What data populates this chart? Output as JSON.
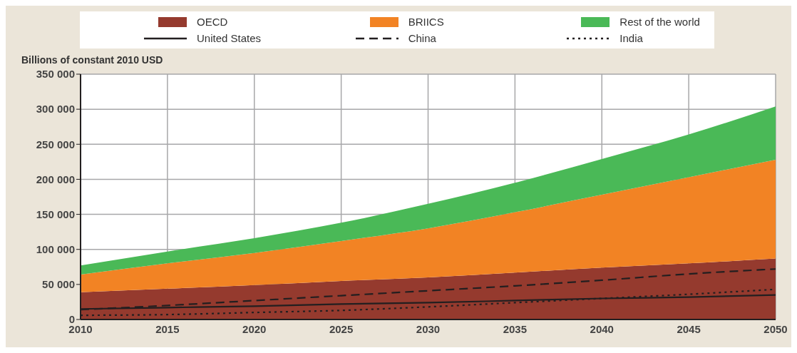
{
  "chart_data": {
    "type": "area",
    "stacked": true,
    "ylabel": "Billions of constant 2010 USD",
    "x": [
      2010,
      2015,
      2020,
      2025,
      2030,
      2035,
      2040,
      2045,
      2050
    ],
    "xlim": [
      2010,
      2050
    ],
    "xticks": [
      2010,
      2015,
      2020,
      2025,
      2030,
      2035,
      2040,
      2045,
      2050
    ],
    "ylim": [
      0,
      350000
    ],
    "yticks": [
      0,
      {
        "value": 50000,
        "label": "50 000"
      },
      {
        "value": 100000,
        "label": "100 000"
      },
      {
        "value": 150000,
        "label": "150 000"
      },
      {
        "value": 200000,
        "label": "200 000"
      },
      {
        "value": 250000,
        "label": "250 000"
      },
      {
        "value": 300000,
        "label": "300 000"
      },
      {
        "value": 350000,
        "label": "350 000"
      }
    ],
    "grid": true,
    "legend": "top",
    "series": [
      {
        "name": "OECD",
        "color": "#953a2e",
        "values": [
          39000,
          44000,
          49000,
          55000,
          60000,
          67000,
          74000,
          80000,
          87000
        ]
      },
      {
        "name": "BRIICS",
        "color": "#f28324",
        "values": [
          25000,
          36000,
          46000,
          57000,
          70000,
          86000,
          104000,
          123000,
          141000
        ]
      },
      {
        "name": "Rest of the world",
        "color": "#4ab957",
        "values": [
          13000,
          17000,
          21000,
          26000,
          35000,
          42000,
          51000,
          61000,
          76000
        ]
      },
      {
        "name": "United States",
        "type": "line",
        "color": "#231f20",
        "line_style": "solid",
        "values": [
          15000,
          17000,
          19000,
          22000,
          24000,
          27000,
          30000,
          32000,
          35000
        ]
      },
      {
        "name": "China",
        "type": "line",
        "color": "#231f20",
        "line_style": "dashed",
        "values": [
          14000,
          20000,
          27000,
          34000,
          41000,
          48000,
          56000,
          65000,
          72000
        ]
      },
      {
        "name": "India",
        "type": "line",
        "color": "#231f20",
        "line_style": "dotted",
        "values": [
          6000,
          7000,
          10000,
          13000,
          18000,
          24000,
          30000,
          36000,
          43000
        ]
      }
    ]
  }
}
